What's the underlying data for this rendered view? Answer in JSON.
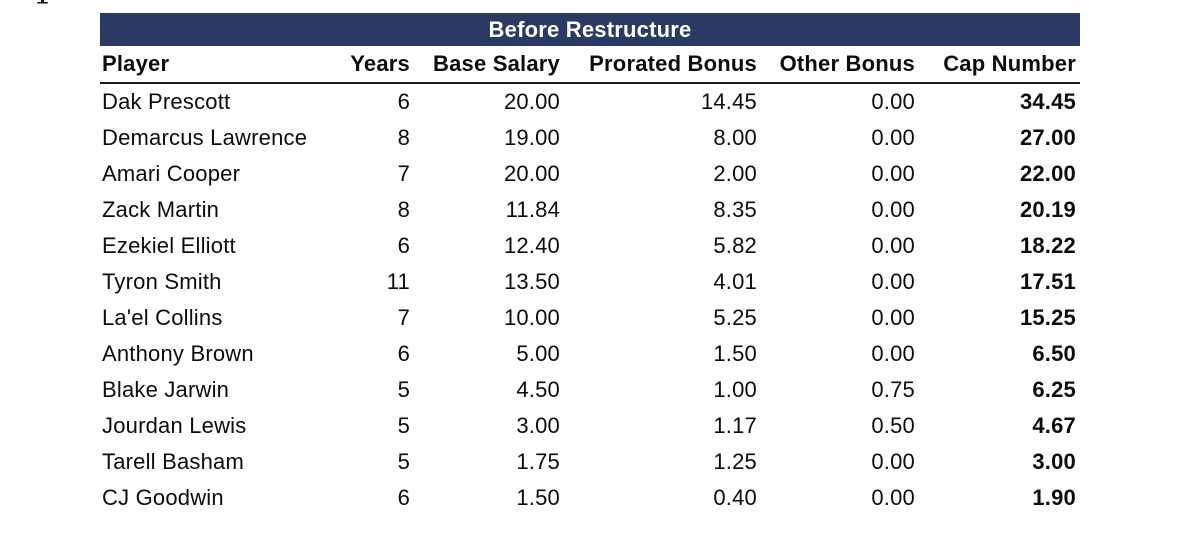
{
  "page": {
    "artifact_glyph": "1"
  },
  "table": {
    "title": "Before Restructure",
    "columns": [
      "Player",
      "Years",
      "Base Salary",
      "Prorated Bonus",
      "Other Bonus",
      "Cap Number"
    ],
    "rows": [
      [
        "Dak Prescott",
        "6",
        "20.00",
        "14.45",
        "0.00",
        "34.45"
      ],
      [
        "Demarcus Lawrence",
        "8",
        "19.00",
        "8.00",
        "0.00",
        "27.00"
      ],
      [
        "Amari Cooper",
        "7",
        "20.00",
        "2.00",
        "0.00",
        "22.00"
      ],
      [
        "Zack Martin",
        "8",
        "11.84",
        "8.35",
        "0.00",
        "20.19"
      ],
      [
        "Ezekiel Elliott",
        "6",
        "12.40",
        "5.82",
        "0.00",
        "18.22"
      ],
      [
        "Tyron Smith",
        "11",
        "13.50",
        "4.01",
        "0.00",
        "17.51"
      ],
      [
        "La'el Collins",
        "7",
        "10.00",
        "5.25",
        "0.00",
        "15.25"
      ],
      [
        "Anthony Brown",
        "6",
        "5.00",
        "1.50",
        "0.00",
        "6.50"
      ],
      [
        "Blake Jarwin",
        "5",
        "4.50",
        "1.00",
        "0.75",
        "6.25"
      ],
      [
        "Jourdan Lewis",
        "5",
        "3.00",
        "1.17",
        "0.50",
        "4.67"
      ],
      [
        "Tarell Basham",
        "5",
        "1.75",
        "1.25",
        "0.00",
        "3.00"
      ],
      [
        "CJ Goodwin",
        "6",
        "1.50",
        "0.40",
        "0.00",
        "1.90"
      ]
    ]
  },
  "colors": {
    "banner_bg": "#2a3a63",
    "banner_text": "#ffffff",
    "text": "#0c0c0c",
    "header_rule": "#1c1c1c"
  }
}
